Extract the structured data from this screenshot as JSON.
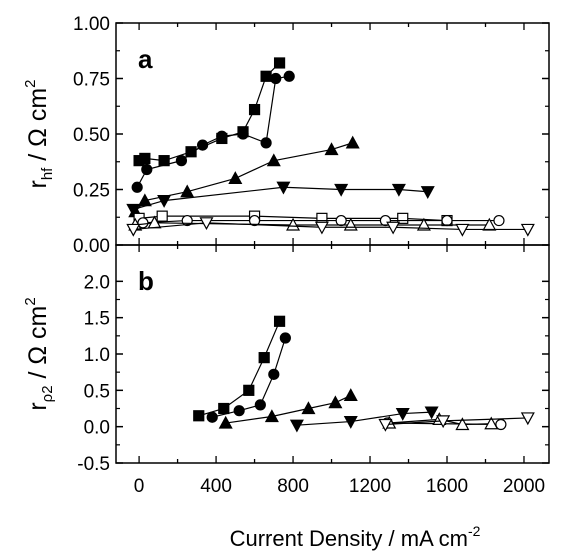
{
  "chart_data": {
    "type": "scatter",
    "xlabel": "Current Density / mA cm",
    "xlabel_sup": "-2",
    "x_ticks": [
      "0",
      "400",
      "800",
      "1200",
      "1600",
      "2000"
    ],
    "x_tick_values": [
      0,
      400,
      800,
      1200,
      1600,
      2000
    ],
    "xlim": [
      -120,
      2130
    ],
    "panels": [
      {
        "panel_label": "a",
        "ylabel_main": "r",
        "ylabel_sub": "hf",
        "ylabel_unit": " / Ω cm",
        "ylabel_sup": "2",
        "ylim": [
          0,
          1.0
        ],
        "y_ticks": [
          "0.00",
          "0.25",
          "0.50",
          "0.75",
          "1.00"
        ],
        "y_tick_values": [
          0,
          0.25,
          0.5,
          0.75,
          1.0
        ],
        "series": [
          {
            "marker": "square",
            "filled": true,
            "points": [
              [
                0,
                0.38
              ],
              [
                30,
                0.39
              ],
              [
                130,
                0.38
              ],
              [
                270,
                0.42
              ],
              [
                430,
                0.48
              ],
              [
                540,
                0.51
              ],
              [
                600,
                0.61
              ],
              [
                660,
                0.76
              ],
              [
                730,
                0.82
              ]
            ]
          },
          {
            "marker": "circle",
            "filled": true,
            "points": [
              [
                -10,
                0.26
              ],
              [
                40,
                0.34
              ],
              [
                220,
                0.38
              ],
              [
                330,
                0.45
              ],
              [
                430,
                0.49
              ],
              [
                540,
                0.5
              ],
              [
                660,
                0.46
              ],
              [
                710,
                0.75
              ],
              [
                780,
                0.76
              ]
            ]
          },
          {
            "marker": "triangle-up",
            "filled": true,
            "points": [
              [
                -20,
                0.15
              ],
              [
                30,
                0.2
              ],
              [
                250,
                0.24
              ],
              [
                500,
                0.3
              ],
              [
                700,
                0.38
              ],
              [
                1000,
                0.43
              ],
              [
                1110,
                0.46
              ]
            ]
          },
          {
            "marker": "triangle-down",
            "filled": true,
            "points": [
              [
                -30,
                0.16
              ],
              [
                130,
                0.2
              ],
              [
                750,
                0.26
              ],
              [
                1050,
                0.25
              ],
              [
                1350,
                0.25
              ],
              [
                1500,
                0.24
              ]
            ]
          },
          {
            "marker": "square",
            "filled": false,
            "points": [
              [
                0,
                0.12
              ],
              [
                120,
                0.13
              ],
              [
                600,
                0.13
              ],
              [
                950,
                0.12
              ],
              [
                1370,
                0.12
              ],
              [
                1600,
                0.11
              ]
            ]
          },
          {
            "marker": "circle",
            "filled": false,
            "points": [
              [
                20,
                0.1
              ],
              [
                250,
                0.11
              ],
              [
                600,
                0.11
              ],
              [
                1050,
                0.11
              ],
              [
                1280,
                0.11
              ],
              [
                1600,
                0.11
              ],
              [
                1870,
                0.11
              ]
            ]
          },
          {
            "marker": "triangle-up",
            "filled": false,
            "points": [
              [
                -20,
                0.09
              ],
              [
                80,
                0.1
              ],
              [
                800,
                0.09
              ],
              [
                1100,
                0.09
              ],
              [
                1480,
                0.09
              ],
              [
                1820,
                0.09
              ]
            ]
          },
          {
            "marker": "triangle-down",
            "filled": false,
            "points": [
              [
                -30,
                0.07
              ],
              [
                350,
                0.1
              ],
              [
                950,
                0.08
              ],
              [
                1320,
                0.08
              ],
              [
                1680,
                0.07
              ],
              [
                2020,
                0.07
              ]
            ]
          }
        ]
      },
      {
        "panel_label": "b",
        "ylabel_main": "r",
        "ylabel_sub": "ρ2",
        "ylabel_unit": " / Ω cm",
        "ylabel_sup": "2",
        "ylim": [
          -0.5,
          2.5
        ],
        "y_ticks": [
          "-0.5",
          "0.0",
          "0.5",
          "1.0",
          "1.5",
          "2.0"
        ],
        "y_tick_values": [
          -0.5,
          0,
          0.5,
          1.0,
          1.5,
          2.0
        ],
        "series": [
          {
            "marker": "square",
            "filled": true,
            "points": [
              [
                310,
                0.15
              ],
              [
                440,
                0.25
              ],
              [
                570,
                0.5
              ],
              [
                650,
                0.95
              ],
              [
                730,
                1.45
              ]
            ]
          },
          {
            "marker": "circle",
            "filled": true,
            "points": [
              [
                380,
                0.13
              ],
              [
                520,
                0.22
              ],
              [
                630,
                0.3
              ],
              [
                700,
                0.72
              ],
              [
                760,
                1.22
              ]
            ]
          },
          {
            "marker": "triangle-up",
            "filled": true,
            "points": [
              [
                450,
                0.05
              ],
              [
                690,
                0.14
              ],
              [
                880,
                0.25
              ],
              [
                1020,
                0.33
              ],
              [
                1100,
                0.43
              ]
            ]
          },
          {
            "marker": "triangle-down",
            "filled": true,
            "points": [
              [
                820,
                0.02
              ],
              [
                1100,
                0.07
              ],
              [
                1370,
                0.18
              ],
              [
                1520,
                0.2
              ]
            ]
          },
          {
            "marker": "circle",
            "filled": false,
            "points": [
              [
                1290,
                0.05
              ],
              [
                1880,
                0.03
              ]
            ]
          },
          {
            "marker": "triangle-up",
            "filled": false,
            "points": [
              [
                1300,
                0.05
              ],
              [
                1560,
                0.1
              ],
              [
                1680,
                0.03
              ],
              [
                1830,
                0.04
              ]
            ]
          },
          {
            "marker": "triangle-down",
            "filled": false,
            "points": [
              [
                1280,
                0.03
              ],
              [
                1580,
                0.08
              ],
              [
                2020,
                0.12
              ]
            ]
          }
        ]
      }
    ]
  }
}
